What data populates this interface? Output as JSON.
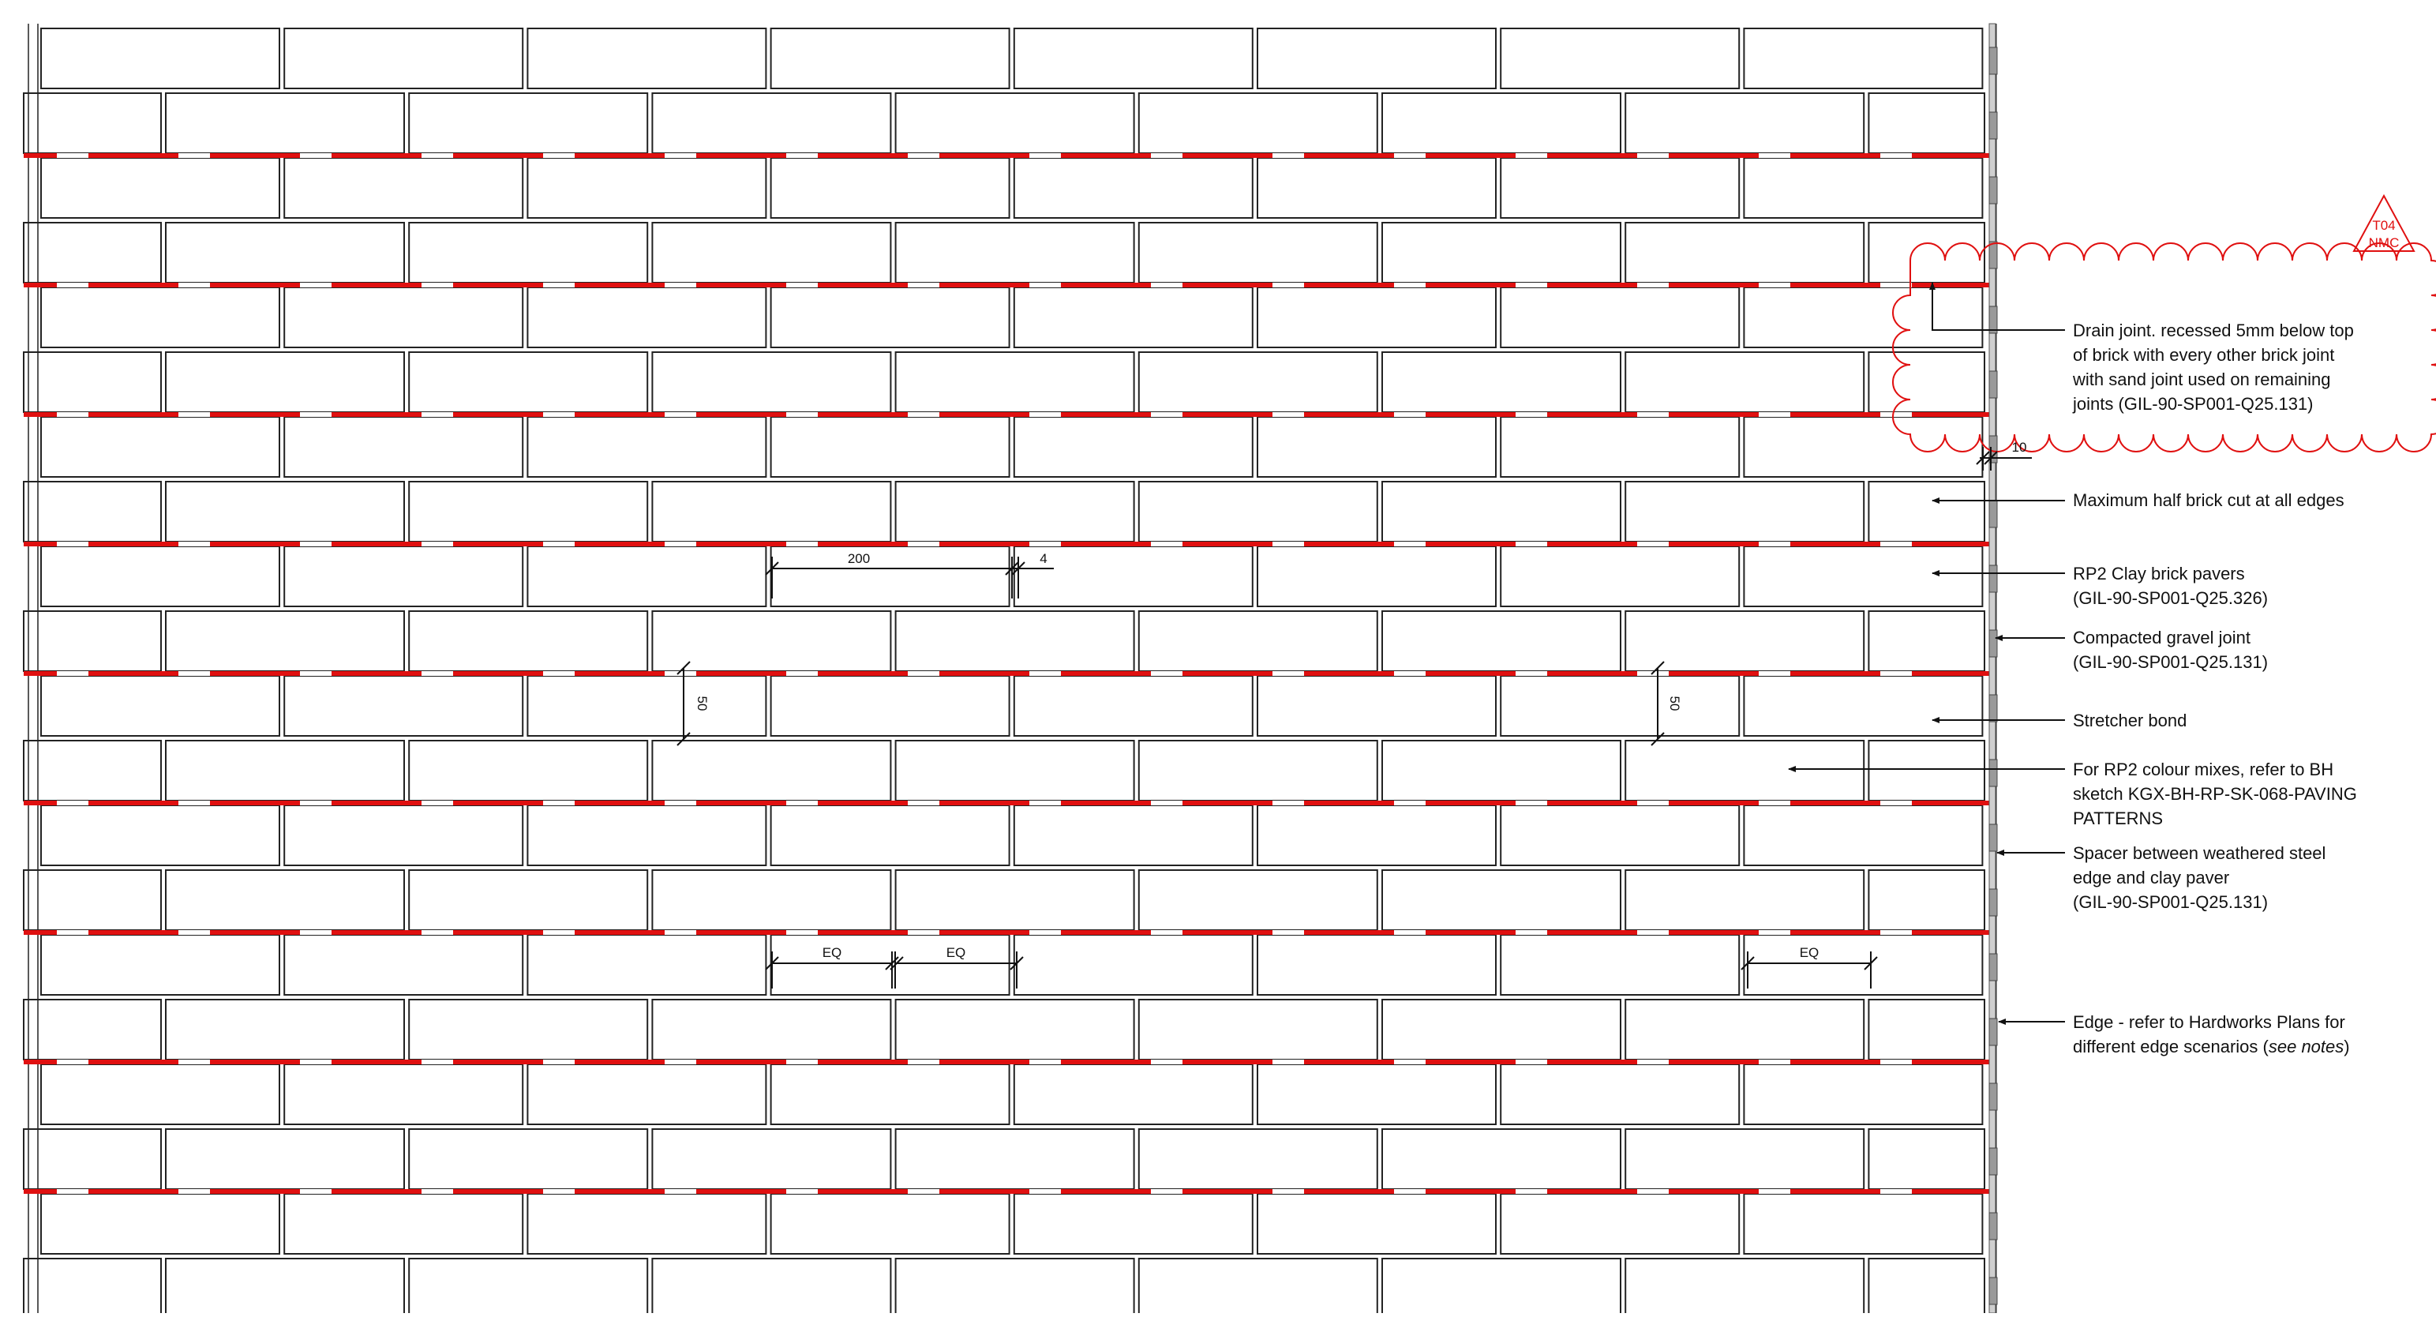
{
  "drawing": {
    "revision": {
      "code": "T04",
      "initials": "NMC",
      "color": "#e01010"
    },
    "colors": {
      "brick_outline": "#222222",
      "drain_joint": "#e01010",
      "hatch": "#7a7a7a",
      "leader": "#111111"
    },
    "dimensions": {
      "brick_length": "200",
      "joint_width": "4",
      "brick_width_left": "50",
      "brick_width_right": "50",
      "spacer_width": "10",
      "eq_1": "EQ",
      "eq_2": "EQ",
      "eq_3": "EQ"
    },
    "annotations": [
      {
        "lines": [
          "Drain joint. recessed 5mm below top",
          "of brick with every other brick joint",
          "with sand joint used on remaining",
          "joints (GIL-90-SP001-Q25.131)"
        ]
      },
      {
        "lines": [
          "Maximum half brick cut at all edges"
        ]
      },
      {
        "lines": [
          "RP2 Clay brick pavers",
          "(GIL-90-SP001-Q25.326)"
        ]
      },
      {
        "lines": [
          "Compacted gravel joint",
          "(GIL-90-SP001-Q25.131)"
        ]
      },
      {
        "lines": [
          "Stretcher bond"
        ]
      },
      {
        "lines": [
          "For RP2 colour mixes, refer to BH",
          "sketch KGX-BH-RP-SK-068-PAVING",
          "PATTERNS"
        ]
      },
      {
        "lines": [
          "Spacer between weathered steel",
          "edge and clay paver",
          "(GIL-90-SP001-Q25.131)"
        ]
      },
      {
        "lines": [
          "Edge - refer to Hardworks Plans for",
          "different edge scenarios (see notes)"
        ]
      }
    ]
  }
}
